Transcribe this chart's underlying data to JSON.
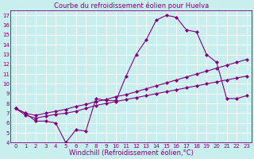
{
  "title": "Courbe du refroidissement éolien pour Huelva",
  "xlabel": "Windchill (Refroidissement éolien,°C)",
  "bg_color": "#c8eeed",
  "line_color": "#800080",
  "grid_color": "#ffffff",
  "xlim": [
    -0.5,
    23.5
  ],
  "ylim": [
    4,
    17.5
  ],
  "xticks": [
    0,
    1,
    2,
    3,
    4,
    5,
    6,
    7,
    8,
    9,
    10,
    11,
    12,
    13,
    14,
    15,
    16,
    17,
    18,
    19,
    20,
    21,
    22,
    23
  ],
  "yticks": [
    4,
    5,
    6,
    7,
    8,
    9,
    10,
    11,
    12,
    13,
    14,
    15,
    16,
    17
  ],
  "line1_x": [
    0,
    1,
    2,
    3,
    4,
    5,
    6,
    7,
    8,
    9,
    10,
    11,
    12,
    13,
    14,
    15,
    16,
    17,
    18,
    19,
    20,
    21,
    22,
    23
  ],
  "line1_y": [
    7.5,
    7.0,
    6.2,
    6.2,
    6.0,
    4.0,
    5.3,
    5.2,
    8.5,
    8.3,
    8.3,
    10.8,
    13.0,
    14.5,
    16.5,
    17.0,
    16.8,
    15.5,
    15.3,
    13.0,
    12.2,
    8.5,
    8.5,
    8.8
  ],
  "line2_x": [
    0,
    1,
    2,
    3,
    4,
    5,
    6,
    7,
    8,
    9,
    10,
    11,
    12,
    13,
    14,
    15,
    16,
    17,
    18,
    19,
    20,
    21,
    22,
    23
  ],
  "line2_y": [
    7.5,
    6.8,
    6.5,
    6.7,
    6.9,
    7.0,
    7.2,
    7.5,
    7.8,
    8.0,
    8.2,
    8.4,
    8.6,
    8.8,
    9.0,
    9.2,
    9.4,
    9.6,
    9.8,
    10.0,
    10.2,
    10.4,
    10.6,
    10.8
  ],
  "line3_x": [
    0,
    1,
    2,
    3,
    4,
    5,
    6,
    7,
    8,
    9,
    10,
    11,
    12,
    13,
    14,
    15,
    16,
    17,
    18,
    19,
    20,
    21,
    22,
    23
  ],
  "line3_y": [
    7.5,
    7.0,
    6.8,
    7.0,
    7.2,
    7.4,
    7.7,
    7.9,
    8.2,
    8.4,
    8.7,
    8.9,
    9.2,
    9.5,
    9.8,
    10.1,
    10.4,
    10.7,
    11.0,
    11.3,
    11.6,
    11.9,
    12.2,
    12.5
  ],
  "marker": "D",
  "markersize": 2.0,
  "linewidth": 0.8,
  "title_fontsize": 6.0,
  "tick_fontsize": 5.0,
  "xlabel_fontsize": 6.0
}
